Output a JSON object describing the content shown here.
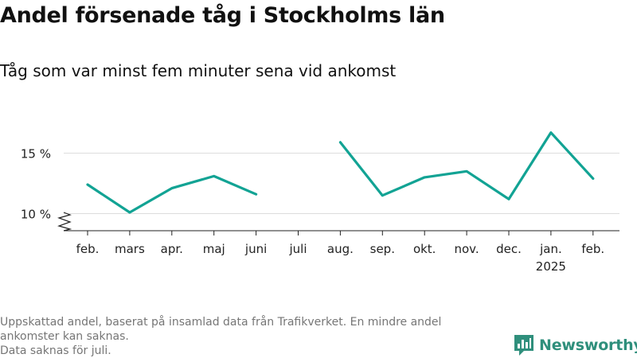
{
  "title": "Andel försenade tåg i Stockholms län",
  "subtitle": "Tåg som var minst fem minuter sena vid ankomst",
  "notes": [
    "Uppskattad andel, baserat på insamlad data från Trafikverket. En mindre andel",
    "ankomster kan saknas.",
    "Data saknas för juli."
  ],
  "brand": {
    "name": "Newsworthy",
    "color": "#2f8f7c"
  },
  "colors": {
    "line": "#12a394",
    "grid": "#dddddd",
    "axis": "#222222",
    "note": "#767676"
  },
  "chart_data": {
    "type": "line",
    "title": "Andel försenade tåg i Stockholms län",
    "subtitle": "Tåg som var minst fem minuter sena vid ankomst",
    "xlabel": "",
    "ylabel": "",
    "categories": [
      "feb.",
      "mars",
      "apr.",
      "maj",
      "juni",
      "juli",
      "aug.",
      "sep.",
      "okt.",
      "nov.",
      "dec.",
      "jan.",
      "feb."
    ],
    "category_sublabels": [
      "",
      "",
      "",
      "",
      "",
      "",
      "",
      "",
      "",
      "",
      "",
      "2025",
      ""
    ],
    "series": [
      {
        "values": [
          12.4,
          10.1,
          12.1,
          13.1,
          11.6,
          null,
          15.9,
          11.5,
          13.0,
          13.5,
          11.2,
          16.7,
          12.9
        ]
      }
    ],
    "yticks": [
      10,
      15
    ],
    "ytick_labels": [
      "10 %",
      "15 %"
    ],
    "ylim": [
      9.2,
      17.5
    ],
    "axis_break": true,
    "grid": true,
    "legend": "none"
  }
}
